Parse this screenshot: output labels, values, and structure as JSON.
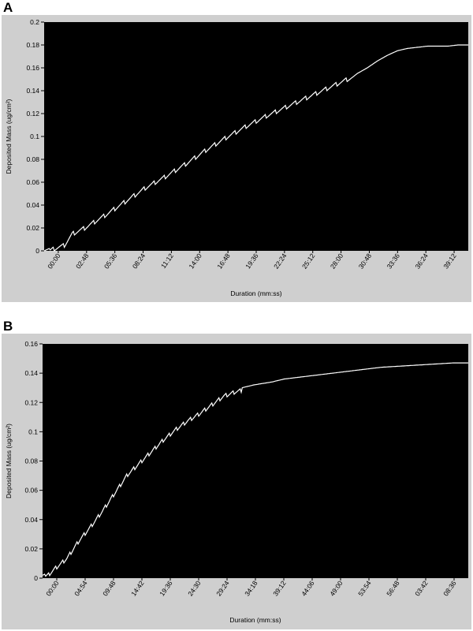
{
  "figure": {
    "panel_a_label": "A",
    "panel_b_label": "B"
  },
  "colors": {
    "plot_bg": "#000000",
    "frame_bg": "#cfcfcf",
    "line": "#ffffff"
  },
  "chart_data": [
    {
      "type": "line",
      "panel": "A",
      "title": "",
      "xlabel": "Duration (mm:ss)",
      "ylabel": "Deposited Mass (ug/cm²)",
      "ylim": [
        0,
        0.2
      ],
      "y_ticks": [
        "0",
        "0.02",
        "0.04",
        "0.06",
        "0.08",
        "0.1",
        "0.12",
        "0.14",
        "0.16",
        "0.18",
        "0.2"
      ],
      "x_ticks": [
        "00:00",
        "02:48",
        "05:36",
        "08:24",
        "11:12",
        "14:00",
        "16:48",
        "19:36",
        "22:24",
        "25:12",
        "28:00",
        "30:48",
        "33:36",
        "36:24",
        "39:12"
      ],
      "grid": false,
      "series": [
        {
          "x": [
            0,
            1,
            2,
            2.8,
            4,
            6,
            8,
            10,
            12,
            14,
            16,
            18,
            20,
            22,
            24,
            26,
            28,
            29,
            30,
            31,
            32,
            33,
            34,
            35,
            36,
            37,
            38,
            39,
            40,
            41,
            42
          ],
          "y": [
            0.0,
            0.004,
            0.007,
            0.017,
            0.022,
            0.033,
            0.045,
            0.057,
            0.067,
            0.078,
            0.09,
            0.101,
            0.111,
            0.12,
            0.128,
            0.136,
            0.144,
            0.148,
            0.152,
            0.155,
            0.16,
            0.166,
            0.171,
            0.175,
            0.177,
            0.178,
            0.179,
            0.179,
            0.179,
            0.18,
            0.18
          ]
        }
      ]
    },
    {
      "type": "line",
      "panel": "B",
      "title": "",
      "xlabel": "Duration (mm:ss)",
      "ylabel": "Deposited Mass (ug/cm²)",
      "ylim": [
        0,
        0.16
      ],
      "y_ticks": [
        "0",
        "0.02",
        "0.04",
        "0.06",
        "0.08",
        "0.1",
        "0.12",
        "0.14",
        "0.16"
      ],
      "x_ticks": [
        "00:00",
        "04:54",
        "09:48",
        "14:42",
        "19:36",
        "24:30",
        "29:24",
        "34:18",
        "39:12",
        "44:06",
        "49:00",
        "53:54",
        "56:48",
        "03:42",
        "08:36"
      ],
      "grid": false,
      "series": [
        {
          "x": [
            0,
            1,
            2,
            4,
            6,
            8,
            10,
            12,
            14,
            16,
            18,
            20,
            22,
            24,
            26,
            28,
            30,
            32,
            34,
            35,
            38,
            40,
            44,
            48,
            52,
            56,
            60,
            64,
            68,
            70.5
          ],
          "y": [
            0.002,
            0.004,
            0.008,
            0.015,
            0.027,
            0.037,
            0.048,
            0.06,
            0.072,
            0.08,
            0.088,
            0.096,
            0.103,
            0.109,
            0.114,
            0.12,
            0.126,
            0.129,
            0.131,
            0.132,
            0.134,
            0.136,
            0.138,
            0.14,
            0.142,
            0.144,
            0.145,
            0.146,
            0.147,
            0.147
          ]
        }
      ]
    }
  ]
}
